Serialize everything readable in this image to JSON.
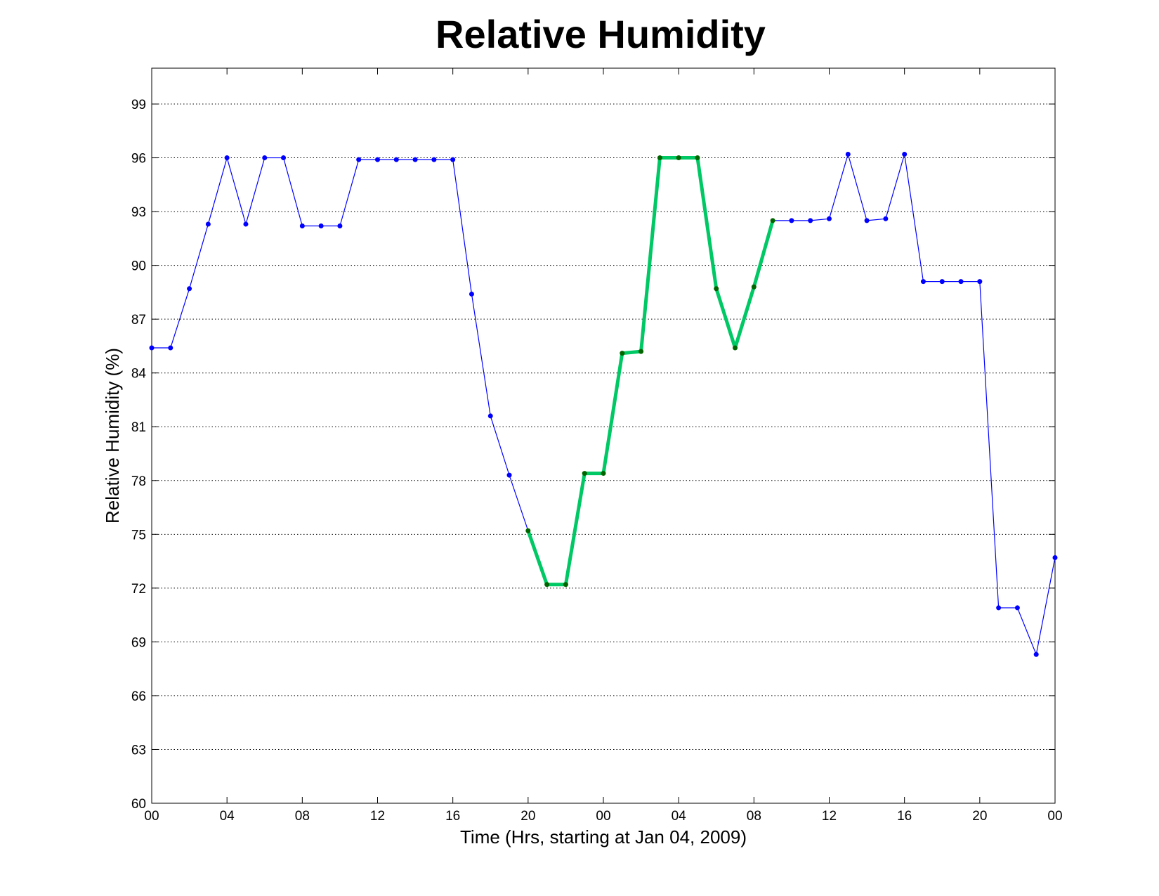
{
  "chart_data": {
    "type": "line",
    "title": "Relative Humidity",
    "xlabel": "Time (Hrs, starting at Jan 04, 2009)",
    "ylabel": "Relative Humidity (%)",
    "xlim": [
      0,
      48
    ],
    "ylim": [
      60,
      101
    ],
    "grid": "y-dotted",
    "colors": {
      "base": "#0000ff",
      "highlight": "#00c864",
      "highlight_marker": "#006400"
    },
    "x_ticks": [
      {
        "x": 0,
        "label": "00"
      },
      {
        "x": 4,
        "label": "04"
      },
      {
        "x": 8,
        "label": "08"
      },
      {
        "x": 12,
        "label": "12"
      },
      {
        "x": 16,
        "label": "16"
      },
      {
        "x": 20,
        "label": "20"
      },
      {
        "x": 24,
        "label": "00"
      },
      {
        "x": 28,
        "label": "04"
      },
      {
        "x": 32,
        "label": "08"
      },
      {
        "x": 36,
        "label": "12"
      },
      {
        "x": 40,
        "label": "16"
      },
      {
        "x": 44,
        "label": "20"
      },
      {
        "x": 48,
        "label": "00"
      }
    ],
    "y_ticks": [
      {
        "y": 60,
        "label": "60"
      },
      {
        "y": 63,
        "label": "63"
      },
      {
        "y": 66,
        "label": "66"
      },
      {
        "y": 69,
        "label": "69"
      },
      {
        "y": 72,
        "label": "72"
      },
      {
        "y": 75,
        "label": "75"
      },
      {
        "y": 78,
        "label": "78"
      },
      {
        "y": 81,
        "label": "81"
      },
      {
        "y": 84,
        "label": "84"
      },
      {
        "y": 87,
        "label": "87"
      },
      {
        "y": 90,
        "label": "90"
      },
      {
        "y": 93,
        "label": "93"
      },
      {
        "y": 96,
        "label": "96"
      },
      {
        "y": 99,
        "label": "99"
      }
    ],
    "x": [
      0,
      1,
      2,
      3,
      4,
      5,
      6,
      7,
      8,
      9,
      10,
      11,
      12,
      13,
      14,
      15,
      16,
      17,
      18,
      19,
      20,
      21,
      22,
      23,
      24,
      25,
      26,
      27,
      28,
      29,
      30,
      31,
      32,
      33,
      34,
      35,
      36,
      37,
      38,
      39,
      40,
      41,
      42,
      43,
      44,
      45,
      46,
      47,
      48
    ],
    "series": [
      {
        "values": [
          85.4,
          85.4,
          88.7,
          92.3,
          96.0,
          92.3,
          96.0,
          96.0,
          92.2,
          92.2,
          92.2,
          95.9,
          95.9,
          95.9,
          95.9,
          95.9,
          95.9,
          88.4,
          81.6,
          78.3,
          75.2,
          72.2,
          72.2,
          78.4,
          78.4,
          85.1,
          85.2,
          96.0,
          96.0,
          96.0,
          88.7,
          85.4,
          88.8,
          92.5,
          92.5,
          92.5,
          92.6,
          96.2,
          92.5,
          92.6,
          96.2,
          89.1,
          89.1,
          89.1,
          89.1,
          70.9,
          70.9,
          68.3,
          73.7
        ]
      },
      {
        "highlight_range": [
          20,
          33
        ]
      }
    ]
  }
}
